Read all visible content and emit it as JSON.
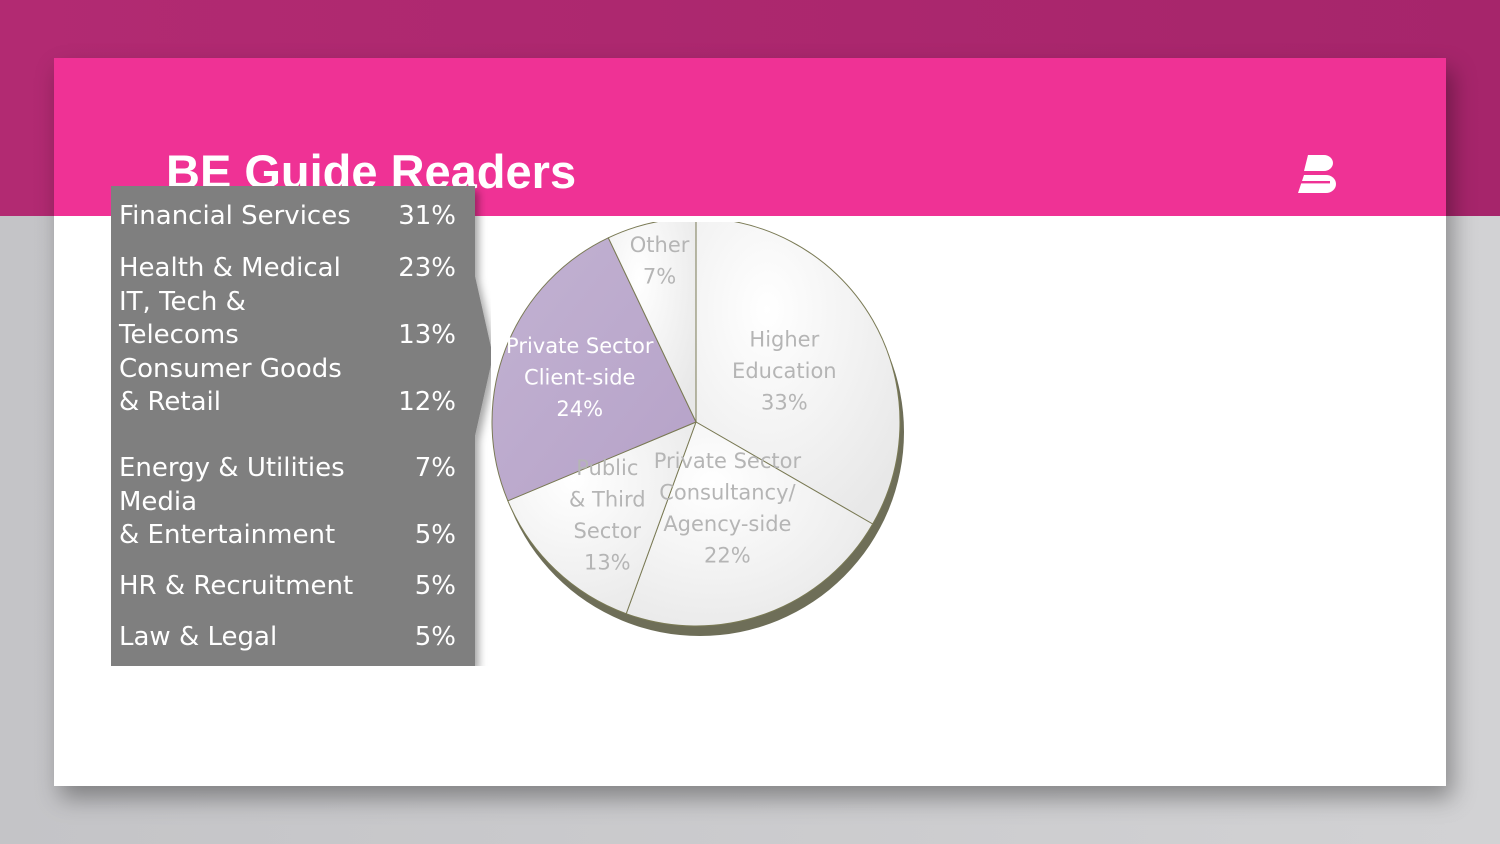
{
  "slide": {
    "title": "BE Guide Readers",
    "logo": "be-logo",
    "colors": {
      "header_bg": "#b22a72",
      "band": "#ef3295",
      "page_bg": "#c4c4c7",
      "slide": "#ffffff",
      "list_box": "#7f7f7f",
      "pie_highlight": "#b6a2c8",
      "pie_slice": "#f4f4f4",
      "pie_label": "#b5b5b5"
    }
  },
  "sectors": [
    {
      "label": "Financial Services",
      "value": "31%"
    },
    {
      "label": "Health & Medical",
      "value": "23%"
    },
    {
      "label": "IT, Tech &\nTelecoms",
      "value": "13%"
    },
    {
      "label": "Consumer Goods\n& Retail",
      "value": "12%"
    },
    {
      "label": "Energy & Utilities",
      "value": "7%"
    },
    {
      "label": "Media\n& Entertainment",
      "value": "5%"
    },
    {
      "label": "HR & Recruitment",
      "value": "5%"
    },
    {
      "label": "Law & Legal",
      "value": "5%"
    }
  ],
  "chart_data": {
    "type": "pie",
    "categories": [
      "Higher Education",
      "Private Sector Consultancy/ Agency-side",
      "Public & Third Sector",
      "Private Sector Client-side",
      "Other"
    ],
    "values": [
      33,
      22,
      13,
      24,
      7
    ],
    "labels": [
      [
        "Higher",
        "Education",
        "33%"
      ],
      [
        "Private Sector",
        "Consultancy/",
        "Agency-side",
        "22%"
      ],
      [
        "Public",
        "& Third",
        "Sector",
        "13%"
      ],
      [
        "Private Sector",
        "Client-side",
        "24%"
      ],
      [
        "Other",
        "7%"
      ]
    ],
    "highlight": "Private Sector Client-side",
    "start_angle": 0,
    "direction": "clockwise"
  }
}
